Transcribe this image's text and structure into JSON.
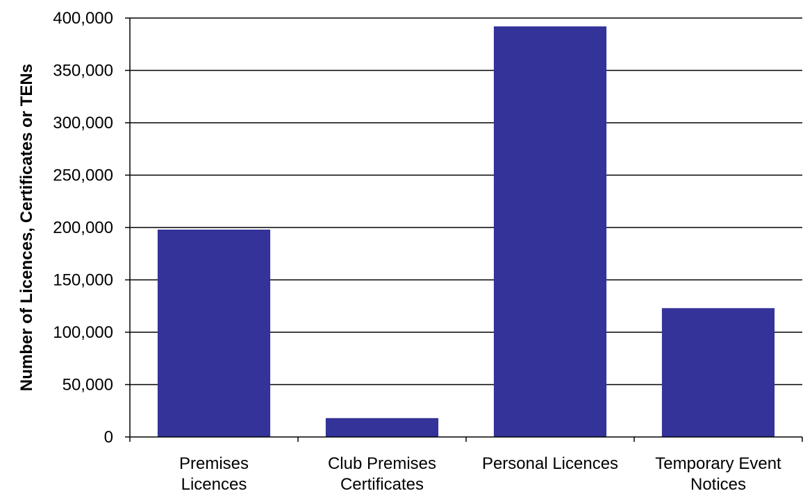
{
  "chart_data": {
    "type": "bar",
    "title": "",
    "xlabel": "",
    "ylabel": "Number of Licences,  Certificates or TENs",
    "categories": [
      [
        "Premises",
        "Licences"
      ],
      [
        "Club Premises",
        "Certificates"
      ],
      [
        "Personal Licences"
      ],
      [
        "Temporary Event",
        "Notices"
      ]
    ],
    "values": [
      198000,
      18000,
      392000,
      123000
    ],
    "ylim": [
      0,
      400000
    ],
    "yticks": [
      0,
      50000,
      100000,
      150000,
      200000,
      250000,
      300000,
      350000,
      400000
    ],
    "ytick_labels": [
      "0",
      "50,000",
      "100,000",
      "150,000",
      "200,000",
      "250,000",
      "300,000",
      "350,000",
      "400,000"
    ],
    "grid": true,
    "legend": "none",
    "bar_color": "#333399"
  }
}
